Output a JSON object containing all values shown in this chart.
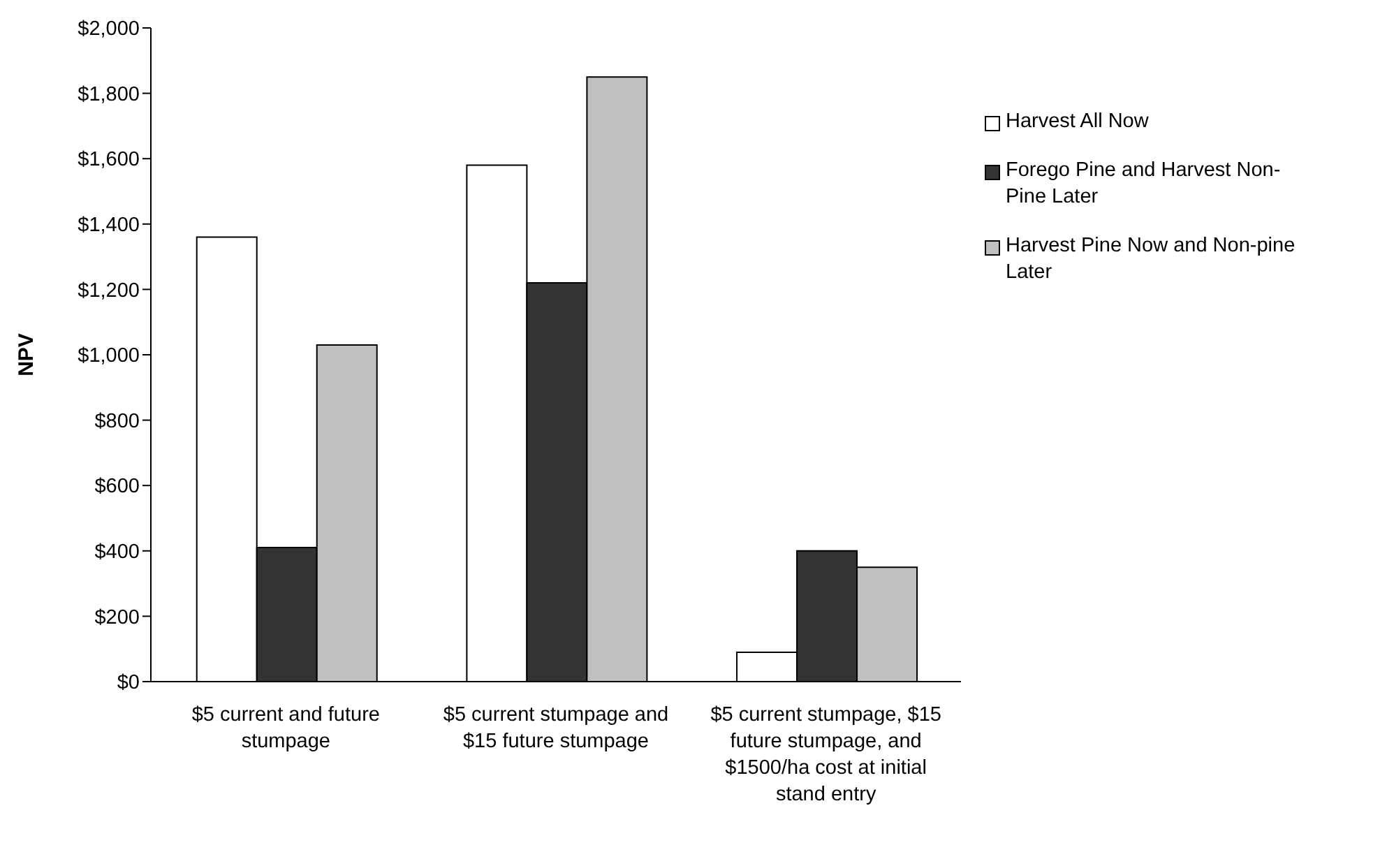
{
  "chart_data": {
    "type": "bar",
    "ylabel": "NPV",
    "categories": [
      "$5 current and future stumpage",
      "$5 current stumpage and $15 future stumpage",
      "$5 current stumpage, $15 future stumpage, and $1500/ha cost at initial stand entry"
    ],
    "series": [
      {
        "name": "Harvest All Now",
        "color": "#ffffff",
        "values": [
          1360,
          1580,
          90
        ]
      },
      {
        "name": "Forego Pine and Harvest Non-Pine Later",
        "color": "#333333",
        "values": [
          410,
          1220,
          400
        ]
      },
      {
        "name": "Harvest Pine Now and Non-pine Later",
        "color": "#c0c0c0",
        "values": [
          1030,
          1850,
          350
        ]
      }
    ],
    "ylim": [
      0,
      2000
    ],
    "yticks": [
      {
        "value": 0,
        "label": "$0"
      },
      {
        "value": 200,
        "label": "$200"
      },
      {
        "value": 400,
        "label": "$400"
      },
      {
        "value": 600,
        "label": "$600"
      },
      {
        "value": 800,
        "label": "$800"
      },
      {
        "value": 1000,
        "label": "$1,000"
      },
      {
        "value": 1200,
        "label": "$1,200"
      },
      {
        "value": 1400,
        "label": "$1,400"
      },
      {
        "value": 1600,
        "label": "$1,600"
      },
      {
        "value": 1800,
        "label": "$1,800"
      },
      {
        "value": 2000,
        "label": "$2,000"
      }
    ],
    "grid": false,
    "legend": "right"
  }
}
